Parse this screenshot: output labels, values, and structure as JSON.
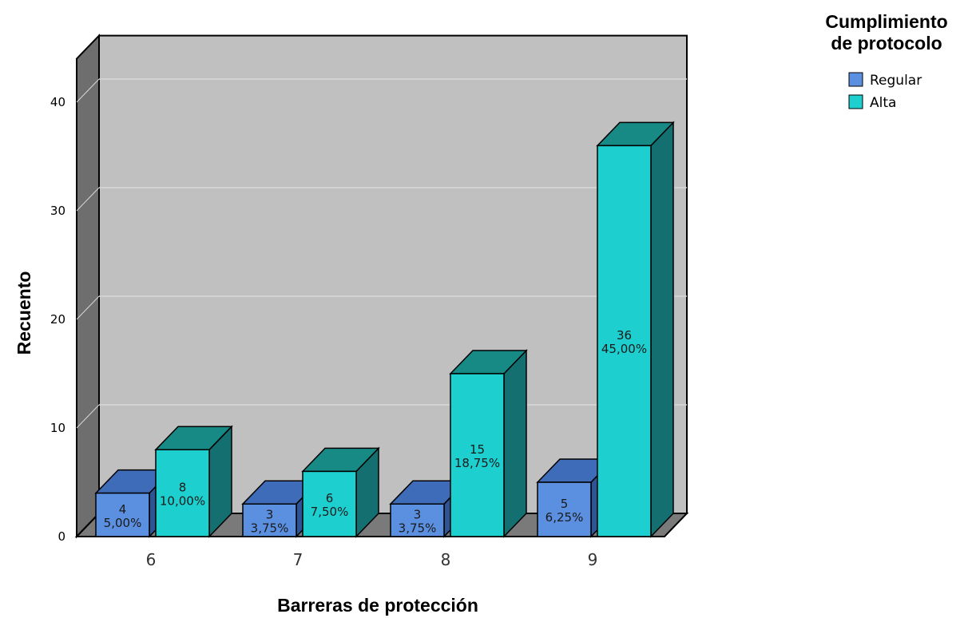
{
  "chart_data": {
    "type": "bar",
    "style": "3d-clustered",
    "categories": [
      "6",
      "7",
      "8",
      "9"
    ],
    "series": [
      {
        "name": "Regular",
        "values": [
          4,
          3,
          3,
          5
        ],
        "percent_labels": [
          "5,00%",
          "3,75%",
          "3,75%",
          "6,25%"
        ],
        "color": "#5b8fe0",
        "top_color": "#3f6cb8",
        "side_color": "#2f5493"
      },
      {
        "name": "Alta",
        "values": [
          8,
          6,
          15,
          36
        ],
        "percent_labels": [
          "10,00%",
          "7,50%",
          "18,75%",
          "45,00%"
        ],
        "color": "#1ecfcf",
        "top_color": "#188a86",
        "side_color": "#147070"
      }
    ],
    "xlabel": "Barreras de protección",
    "ylabel": "Recuento",
    "ylim": [
      0,
      40
    ],
    "yticks": [
      0,
      10,
      20,
      30,
      40
    ],
    "grid": true,
    "legend": {
      "title_line1": "Cumplimiento",
      "title_line2": "de protocolo",
      "placement": "top-right"
    },
    "colors": {
      "plot_background": "#c0c0c0",
      "floor": "#7a7a7a",
      "left_wall": "#6e6e6e",
      "gridline": "#d8d8d8"
    }
  }
}
